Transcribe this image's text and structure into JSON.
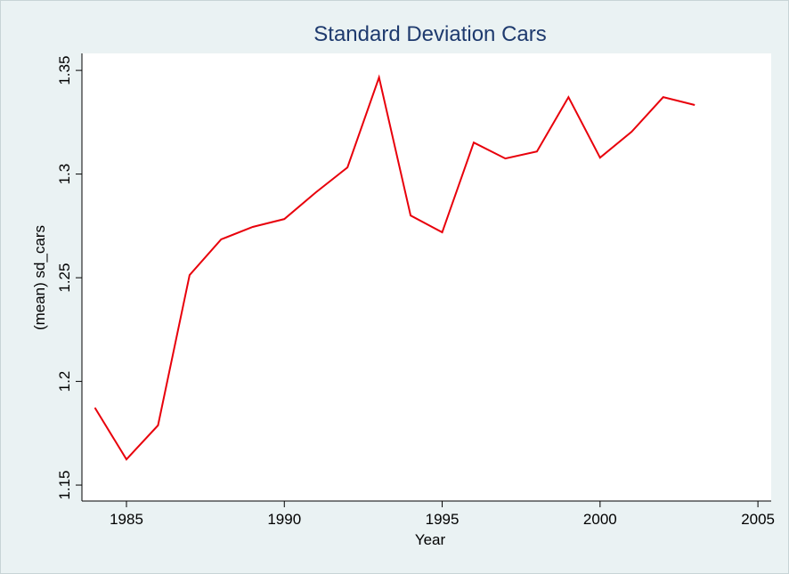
{
  "chart_data": {
    "type": "line",
    "title": "Standard Deviation Cars",
    "x_label": "Year",
    "y_label": "(mean) sd_cars",
    "x": [
      1984,
      1985,
      1986,
      1987,
      1988,
      1989,
      1990,
      1991,
      1992,
      1993,
      1994,
      1995,
      1996,
      1997,
      1998,
      1999,
      2000,
      2001,
      2002,
      2003
    ],
    "series": [
      {
        "color": "#e8000b",
        "values": [
          1.1873,
          1.1624,
          1.1788,
          1.2513,
          1.2685,
          1.2745,
          1.2783,
          1.2912,
          1.3032,
          1.3466,
          1.28,
          1.2719,
          1.3152,
          1.3075,
          1.3109,
          1.3371,
          1.3079,
          1.3204,
          1.3371,
          1.3333
        ]
      }
    ],
    "xlim": [
      1983.59,
      2005.42
    ],
    "ylim": [
      1.1423,
      1.3582
    ],
    "xticks": [
      1985,
      1990,
      1995,
      2000,
      2005
    ],
    "yticks": [
      {
        "value": 1.15,
        "label": "1.15"
      },
      {
        "value": 1.2,
        "label": "1.2"
      },
      {
        "value": 1.25,
        "label": "1.25"
      },
      {
        "value": 1.3,
        "label": "1.3"
      },
      {
        "value": 1.35,
        "label": "1.35"
      }
    ],
    "grid": false
  }
}
